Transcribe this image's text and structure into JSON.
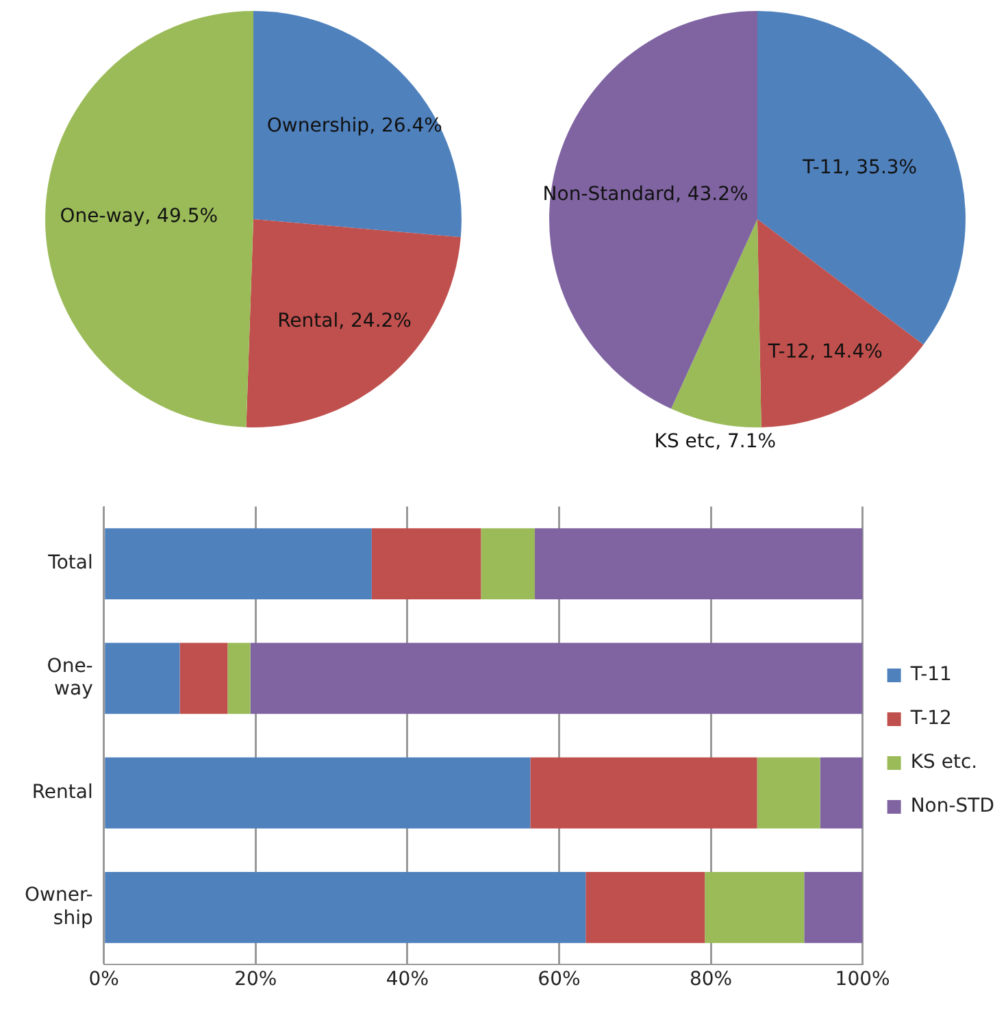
{
  "chart_data": [
    {
      "type": "pie",
      "categories": [
        "Ownership",
        "Rental",
        "One-way"
      ],
      "values": [
        26.4,
        24.2,
        49.5
      ],
      "value_labels": [
        "26.4%",
        "24.2%",
        "49.5%"
      ],
      "colors": [
        "#4f81bd",
        "#c0504d",
        "#9bbb59"
      ],
      "legend": false
    },
    {
      "type": "pie",
      "categories": [
        "T-11",
        "T-12",
        "KS etc",
        "Non-Standard"
      ],
      "values": [
        35.3,
        14.4,
        7.1,
        43.2
      ],
      "value_labels": [
        "35.3%",
        "14.4%",
        "7.1%",
        "43.2%"
      ],
      "colors": [
        "#4f81bd",
        "#c0504d",
        "#9bbb59",
        "#8064a2"
      ],
      "legend": false
    },
    {
      "type": "bar",
      "orientation": "horizontal",
      "stacked": true,
      "categories": [
        "Total",
        "One-\nway",
        "Rental",
        "Owner-\nship"
      ],
      "series": [
        {
          "name": "T-11",
          "color": "#4f81bd",
          "values": [
            35.3,
            10.0,
            56.2,
            63.5
          ]
        },
        {
          "name": "T-12",
          "color": "#c0504d",
          "values": [
            14.4,
            6.3,
            29.9,
            15.7
          ]
        },
        {
          "name": "KS etc.",
          "color": "#9bbb59",
          "values": [
            7.1,
            3.0,
            8.3,
            13.1
          ]
        },
        {
          "name": "Non-STD",
          "color": "#8064a2",
          "values": [
            43.2,
            80.7,
            5.6,
            7.7
          ]
        }
      ],
      "xlim": [
        0,
        100
      ],
      "xticks": [
        {
          "value": 0,
          "label": "0%"
        },
        {
          "value": 20,
          "label": "20%"
        },
        {
          "value": 40,
          "label": "40%"
        },
        {
          "value": 60,
          "label": "60%"
        },
        {
          "value": 80,
          "label": "80%"
        },
        {
          "value": 100,
          "label": "100%"
        }
      ],
      "grid": "x",
      "legend": "right"
    }
  ]
}
